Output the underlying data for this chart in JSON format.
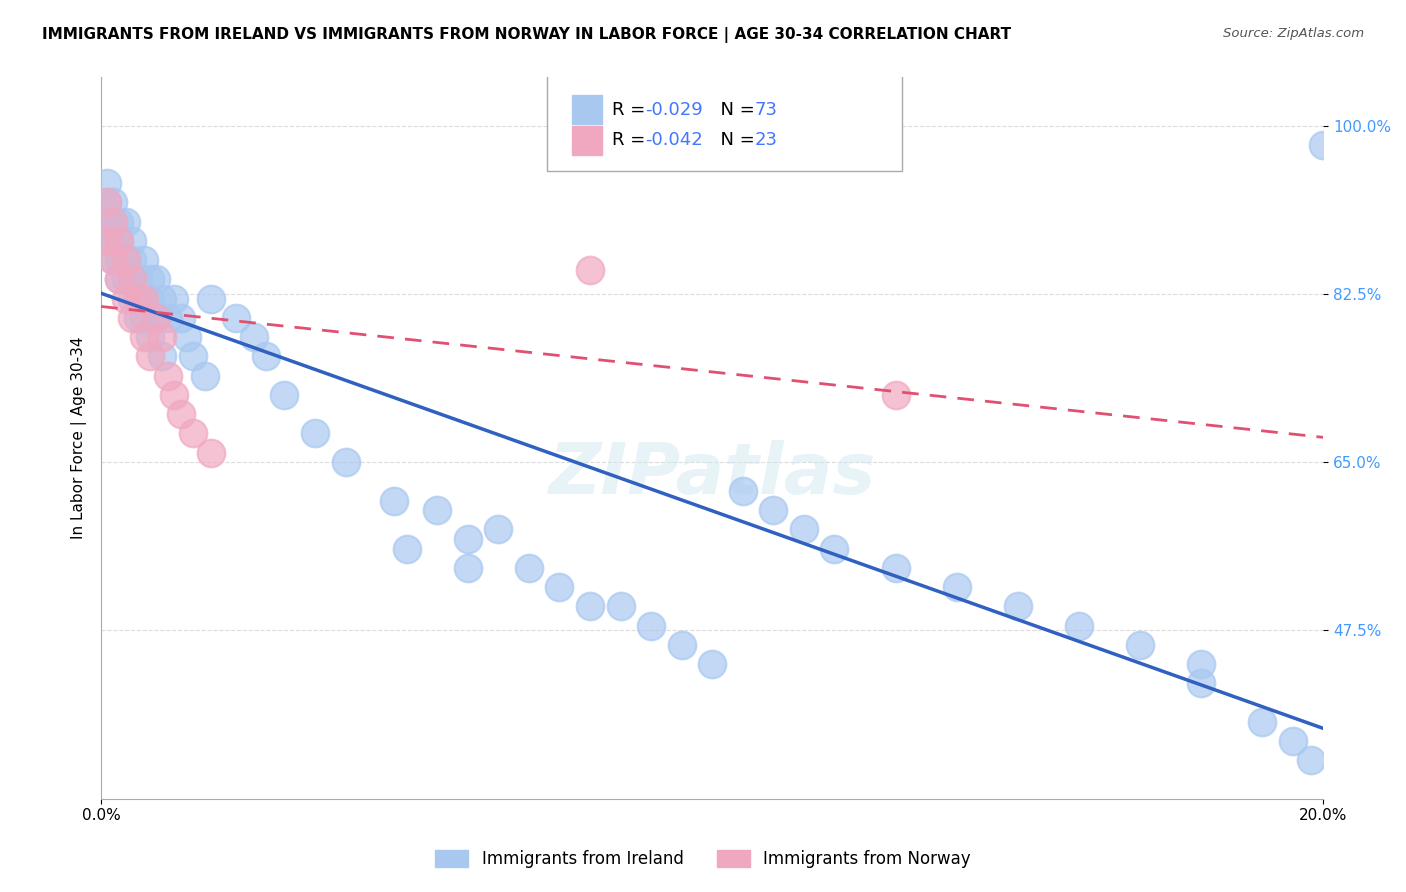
{
  "title": "IMMIGRANTS FROM IRELAND VS IMMIGRANTS FROM NORWAY IN LABOR FORCE | AGE 30-34 CORRELATION CHART",
  "source": "Source: ZipAtlas.com",
  "xlabel": "",
  "ylabel": "In Labor Force | Age 30-34",
  "xlim": [
    0.0,
    0.2
  ],
  "ylim": [
    0.3,
    1.05
  ],
  "yticks": [
    0.475,
    0.65,
    0.825,
    1.0
  ],
  "ytick_labels": [
    "47.5%",
    "65.0%",
    "82.5%",
    "100.0%"
  ],
  "xtick_labels": [
    "0.0%",
    "20.0%"
  ],
  "xticks": [
    0.0,
    0.2
  ],
  "watermark": "ZIPatlas",
  "ireland_color": "#a8c8f0",
  "norway_color": "#f0a8c0",
  "ireland_line_color": "#3060c0",
  "norway_line_color": "#e05070",
  "ireland_R": -0.029,
  "ireland_N": 73,
  "norway_R": -0.042,
  "norway_N": 23,
  "ireland_x": [
    0.001,
    0.001,
    0.001,
    0.001,
    0.002,
    0.002,
    0.002,
    0.002,
    0.003,
    0.003,
    0.003,
    0.003,
    0.004,
    0.004,
    0.004,
    0.005,
    0.005,
    0.005,
    0.005,
    0.006,
    0.006,
    0.006,
    0.007,
    0.007,
    0.007,
    0.008,
    0.008,
    0.008,
    0.009,
    0.009,
    0.01,
    0.01,
    0.011,
    0.012,
    0.013,
    0.014,
    0.015,
    0.017,
    0.018,
    0.022,
    0.025,
    0.027,
    0.03,
    0.035,
    0.04,
    0.048,
    0.055,
    0.06,
    0.065,
    0.07,
    0.075,
    0.085,
    0.09,
    0.095,
    0.1,
    0.105,
    0.11,
    0.115,
    0.12,
    0.13,
    0.14,
    0.15,
    0.16,
    0.17,
    0.18,
    0.19,
    0.195,
    0.198,
    0.2,
    0.05,
    0.06,
    0.08,
    0.18
  ],
  "ireland_y": [
    0.88,
    0.9,
    0.92,
    0.94,
    0.86,
    0.88,
    0.9,
    0.92,
    0.84,
    0.86,
    0.88,
    0.9,
    0.84,
    0.86,
    0.9,
    0.82,
    0.84,
    0.86,
    0.88,
    0.8,
    0.82,
    0.84,
    0.8,
    0.82,
    0.86,
    0.78,
    0.82,
    0.84,
    0.8,
    0.84,
    0.76,
    0.82,
    0.8,
    0.82,
    0.8,
    0.78,
    0.76,
    0.74,
    0.82,
    0.8,
    0.78,
    0.76,
    0.72,
    0.68,
    0.65,
    0.61,
    0.6,
    0.57,
    0.58,
    0.54,
    0.52,
    0.5,
    0.48,
    0.46,
    0.44,
    0.62,
    0.6,
    0.58,
    0.56,
    0.54,
    0.52,
    0.5,
    0.48,
    0.46,
    0.44,
    0.38,
    0.36,
    0.34,
    0.98,
    0.56,
    0.54,
    0.5,
    0.42
  ],
  "norway_x": [
    0.001,
    0.001,
    0.002,
    0.002,
    0.003,
    0.003,
    0.004,
    0.004,
    0.005,
    0.005,
    0.006,
    0.007,
    0.007,
    0.008,
    0.009,
    0.01,
    0.011,
    0.012,
    0.013,
    0.015,
    0.018,
    0.08,
    0.13
  ],
  "norway_y": [
    0.88,
    0.92,
    0.86,
    0.9,
    0.84,
    0.88,
    0.82,
    0.86,
    0.8,
    0.84,
    0.82,
    0.78,
    0.82,
    0.76,
    0.8,
    0.78,
    0.74,
    0.72,
    0.7,
    0.68,
    0.66,
    0.85,
    0.72
  ],
  "grid_color": "#cccccc",
  "background_color": "#ffffff",
  "title_fontsize": 11,
  "axis_label_fontsize": 11,
  "legend_fontsize": 13,
  "tick_fontsize": 11
}
